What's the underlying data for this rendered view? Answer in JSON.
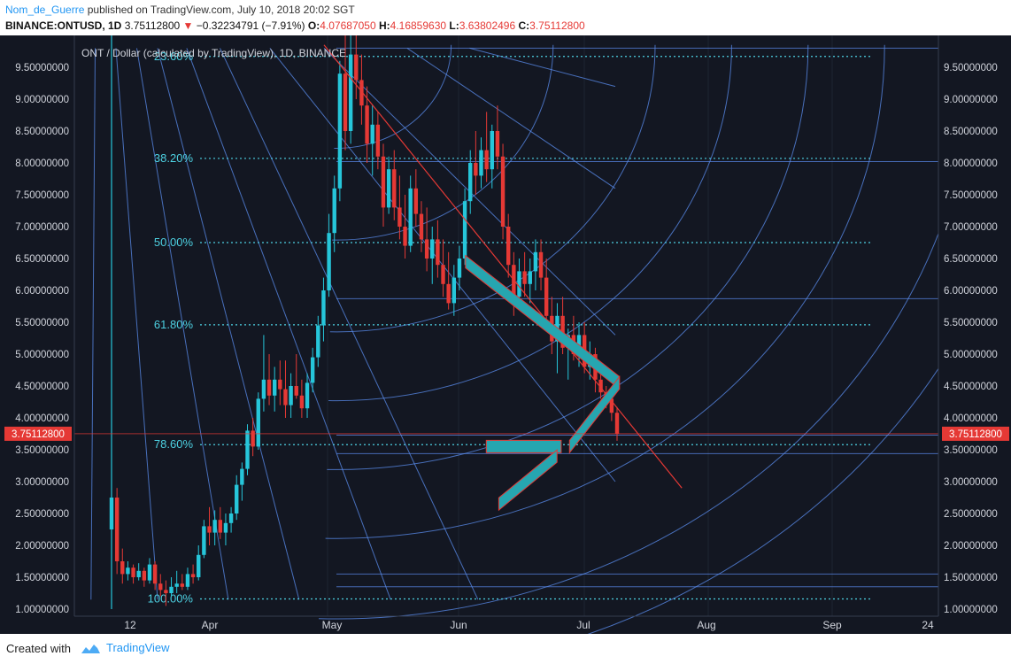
{
  "header": {
    "author": "Nom_de_Guerre",
    "published": " published on TradingView.com, July 10, 2018 20:02 SGT",
    "symbol": "BINANCE:ONTUSD, 1D",
    "last": "3.75112800",
    "change_arrow": "▼",
    "change": "−0.32234791 (−7.91%)",
    "open_label": "O:",
    "open": "4.07687050",
    "high_label": "H:",
    "high": "4.16859630",
    "low_label": "L:",
    "low": "3.63802496",
    "close_label": "C:",
    "close": "3.75112800"
  },
  "footer": {
    "created_with": "Created with",
    "brand": "TradingView"
  },
  "colors": {
    "background": "#131722",
    "up": "#26c6da",
    "down": "#e53935",
    "fib": "#4dd0e1",
    "gann": "#5b8def",
    "trend": "#e53935",
    "price_badge": "#e53935"
  },
  "chart_data": {
    "type": "candlestick",
    "title": "ONT / Dollar (calculated by TradingView), 1D, BINANCE",
    "y_axis": {
      "min": 1.0,
      "max": 9.5,
      "ticks": [
        "9.50000000",
        "9.00000000",
        "8.50000000",
        "8.00000000",
        "7.50000000",
        "7.00000000",
        "6.50000000",
        "6.00000000",
        "5.50000000",
        "5.00000000",
        "4.50000000",
        "4.00000000",
        "3.50000000",
        "3.00000000",
        "2.50000000",
        "2.00000000",
        "1.50000000",
        "1.00000000"
      ]
    },
    "x_axis": {
      "ticks": [
        "12",
        "Apr",
        "May",
        "Jun",
        "Jul",
        "Aug",
        "Sep",
        "24"
      ]
    },
    "current_price": "3.75112800",
    "fib_levels": [
      {
        "label": "23.60%",
        "price": 9.67
      },
      {
        "label": "38.20%",
        "price": 8.07
      },
      {
        "label": "50.00%",
        "price": 6.75
      },
      {
        "label": "61.80%",
        "price": 5.46
      },
      {
        "label": "78.60%",
        "price": 3.58
      },
      {
        "label": "100.00%",
        "price": 1.16
      }
    ],
    "candles": [
      [
        2.25,
        2.85,
        2.1,
        2.75
      ],
      [
        2.75,
        2.9,
        1.55,
        1.75
      ],
      [
        1.75,
        1.95,
        1.4,
        1.55
      ],
      [
        1.55,
        1.75,
        1.45,
        1.65
      ],
      [
        1.65,
        1.7,
        1.4,
        1.5
      ],
      [
        1.5,
        1.72,
        1.45,
        1.6
      ],
      [
        1.6,
        1.65,
        1.35,
        1.45
      ],
      [
        1.45,
        1.8,
        1.4,
        1.7
      ],
      [
        1.7,
        1.75,
        1.3,
        1.4
      ],
      [
        1.4,
        1.55,
        1.2,
        1.3
      ],
      [
        1.3,
        1.45,
        1.05,
        1.25
      ],
      [
        1.25,
        1.5,
        1.2,
        1.35
      ],
      [
        1.35,
        1.6,
        1.25,
        1.4
      ],
      [
        1.4,
        1.55,
        1.3,
        1.35
      ],
      [
        1.35,
        1.65,
        1.3,
        1.55
      ],
      [
        1.55,
        1.7,
        1.4,
        1.5
      ],
      [
        1.5,
        2.0,
        1.45,
        1.85
      ],
      [
        1.85,
        2.4,
        1.8,
        2.3
      ],
      [
        2.3,
        2.6,
        2.0,
        2.2
      ],
      [
        2.2,
        2.55,
        2.0,
        2.4
      ],
      [
        2.4,
        2.6,
        2.1,
        2.2
      ],
      [
        2.2,
        2.5,
        2.0,
        2.35
      ],
      [
        2.35,
        2.6,
        2.2,
        2.5
      ],
      [
        2.5,
        3.1,
        2.4,
        2.95
      ],
      [
        2.95,
        3.3,
        2.7,
        3.2
      ],
      [
        3.2,
        3.9,
        3.1,
        3.8
      ],
      [
        3.8,
        4.0,
        3.4,
        3.55
      ],
      [
        3.55,
        4.4,
        3.5,
        4.3
      ],
      [
        4.3,
        5.3,
        4.1,
        4.6
      ],
      [
        4.6,
        5.0,
        4.2,
        4.35
      ],
      [
        4.35,
        4.8,
        4.1,
        4.6
      ],
      [
        4.6,
        4.9,
        4.2,
        4.45
      ],
      [
        4.45,
        4.9,
        4.0,
        4.2
      ],
      [
        4.2,
        4.7,
        4.0,
        4.5
      ],
      [
        4.5,
        5.0,
        4.3,
        4.35
      ],
      [
        4.35,
        4.6,
        4.0,
        4.15
      ],
      [
        4.15,
        4.7,
        4.0,
        4.55
      ],
      [
        4.55,
        5.1,
        4.4,
        4.95
      ],
      [
        4.95,
        5.6,
        4.8,
        5.45
      ],
      [
        5.45,
        6.2,
        5.2,
        6.0
      ],
      [
        6.0,
        7.2,
        5.9,
        6.9
      ],
      [
        6.9,
        7.8,
        6.6,
        7.6
      ],
      [
        7.6,
        9.6,
        7.4,
        9.4
      ],
      [
        9.4,
        10.0,
        8.2,
        8.5
      ],
      [
        8.5,
        10.0,
        8.3,
        9.7
      ],
      [
        9.7,
        10.0,
        9.0,
        9.3
      ],
      [
        9.3,
        9.7,
        8.6,
        8.9
      ],
      [
        8.9,
        9.2,
        8.0,
        8.3
      ],
      [
        8.3,
        8.9,
        7.8,
        8.6
      ],
      [
        8.6,
        8.8,
        7.9,
        8.1
      ],
      [
        8.1,
        8.3,
        7.0,
        7.3
      ],
      [
        7.3,
        8.1,
        7.2,
        7.9
      ],
      [
        7.9,
        8.2,
        7.1,
        7.3
      ],
      [
        7.3,
        7.8,
        6.8,
        7.0
      ],
      [
        7.0,
        7.5,
        6.5,
        6.7
      ],
      [
        6.7,
        7.8,
        6.6,
        7.6
      ],
      [
        7.6,
        7.9,
        7.0,
        7.2
      ],
      [
        7.2,
        7.4,
        6.6,
        6.8
      ],
      [
        6.8,
        7.3,
        6.3,
        6.5
      ],
      [
        6.5,
        7.0,
        6.1,
        6.8
      ],
      [
        6.8,
        7.1,
        6.2,
        6.4
      ],
      [
        6.4,
        6.8,
        5.9,
        6.1
      ],
      [
        6.1,
        6.6,
        5.7,
        5.8
      ],
      [
        5.8,
        6.4,
        5.6,
        6.2
      ],
      [
        6.2,
        6.7,
        6.0,
        6.5
      ],
      [
        6.5,
        7.6,
        6.4,
        7.4
      ],
      [
        7.4,
        8.2,
        7.2,
        8.0
      ],
      [
        8.0,
        8.5,
        7.5,
        7.8
      ],
      [
        7.8,
        8.4,
        7.6,
        8.2
      ],
      [
        8.2,
        8.8,
        7.7,
        7.9
      ],
      [
        7.9,
        8.6,
        7.6,
        8.5
      ],
      [
        8.5,
        8.9,
        7.9,
        8.1
      ],
      [
        8.1,
        8.3,
        6.8,
        7.0
      ],
      [
        7.0,
        7.2,
        6.2,
        6.4
      ],
      [
        6.4,
        6.6,
        5.6,
        5.9
      ],
      [
        5.9,
        6.5,
        5.7,
        6.3
      ],
      [
        6.3,
        6.6,
        5.9,
        6.1
      ],
      [
        6.1,
        6.5,
        5.8,
        6.3
      ],
      [
        6.3,
        6.8,
        6.0,
        6.6
      ],
      [
        6.6,
        6.8,
        6.0,
        6.2
      ],
      [
        6.2,
        6.5,
        5.4,
        5.6
      ],
      [
        5.6,
        5.9,
        5.0,
        5.2
      ],
      [
        5.2,
        5.8,
        4.7,
        5.6
      ],
      [
        5.6,
        5.9,
        5.0,
        5.1
      ],
      [
        5.1,
        5.4,
        4.6,
        5.3
      ],
      [
        5.3,
        5.6,
        4.9,
        5.0
      ],
      [
        5.0,
        5.5,
        4.8,
        5.3
      ],
      [
        5.3,
        5.5,
        4.7,
        4.8
      ],
      [
        4.8,
        5.2,
        4.6,
        5.0
      ],
      [
        5.0,
        5.1,
        4.4,
        4.6
      ],
      [
        4.6,
        4.8,
        4.3,
        4.4
      ],
      [
        4.4,
        4.5,
        4.15,
        4.3
      ],
      [
        4.3,
        4.4,
        3.95,
        4.08
      ],
      [
        4.08,
        4.17,
        3.64,
        3.75
      ]
    ],
    "gann_fan_lines": [
      [
        [
          0.05,
          9.8
        ],
        [
          0.04,
          1.15
        ]
      ],
      [
        [
          0.1,
          9.8
        ],
        [
          0.2,
          1.15
        ]
      ],
      [
        [
          0.15,
          9.8
        ],
        [
          0.37,
          1.15
        ]
      ],
      [
        [
          0.2,
          9.8
        ],
        [
          0.54,
          1.15
        ]
      ],
      [
        [
          0.27,
          9.8
        ],
        [
          0.76,
          1.15
        ]
      ],
      [
        [
          0.35,
          9.8
        ],
        [
          0.97,
          1.15
        ]
      ],
      [
        [
          0.47,
          9.8
        ],
        [
          1.3,
          3.0
        ]
      ],
      [
        [
          0.6,
          9.8
        ],
        [
          1.3,
          5.3
        ]
      ],
      [
        [
          0.8,
          9.8
        ],
        [
          1.3,
          7.6
        ]
      ],
      [
        [
          0.95,
          9.8
        ],
        [
          1.3,
          9.2
        ]
      ]
    ],
    "gann_arcs": [
      {
        "radius_fraction": 0.18,
        "half_turn": false
      },
      {
        "radius_fraction": 0.34,
        "half_turn": false
      },
      {
        "radius_fraction": 0.5,
        "half_turn": false
      },
      {
        "radius_fraction": 0.62,
        "half_turn": false
      },
      {
        "radius_fraction": 0.74,
        "half_turn": false
      },
      {
        "radius_fraction": 0.86,
        "half_turn": false
      },
      {
        "radius_fraction": 1.0,
        "half_turn": true
      },
      {
        "radius_fraction": 1.1,
        "half_turn": true
      }
    ],
    "gann_horizontals": [
      9.8,
      8.02,
      5.87,
      3.73,
      3.44,
      1.55,
      1.35
    ],
    "trend_line": [
      [
        0.6,
        9.85
      ],
      [
        1.46,
        2.9
      ]
    ],
    "projections": [
      {
        "label": "drop",
        "points": [
          [
            0.94,
            6.45
          ],
          [
            1.31,
            4.55
          ]
        ]
      },
      {
        "label": "bounce",
        "points": [
          [
            1.19,
            3.55
          ],
          [
            1.31,
            4.55
          ]
        ]
      },
      {
        "label": "base",
        "points": [
          [
            0.99,
            3.55
          ],
          [
            1.17,
            3.55
          ]
        ]
      },
      {
        "label": "floor",
        "points": [
          [
            1.02,
            2.65
          ],
          [
            1.16,
            3.4
          ]
        ]
      }
    ]
  }
}
